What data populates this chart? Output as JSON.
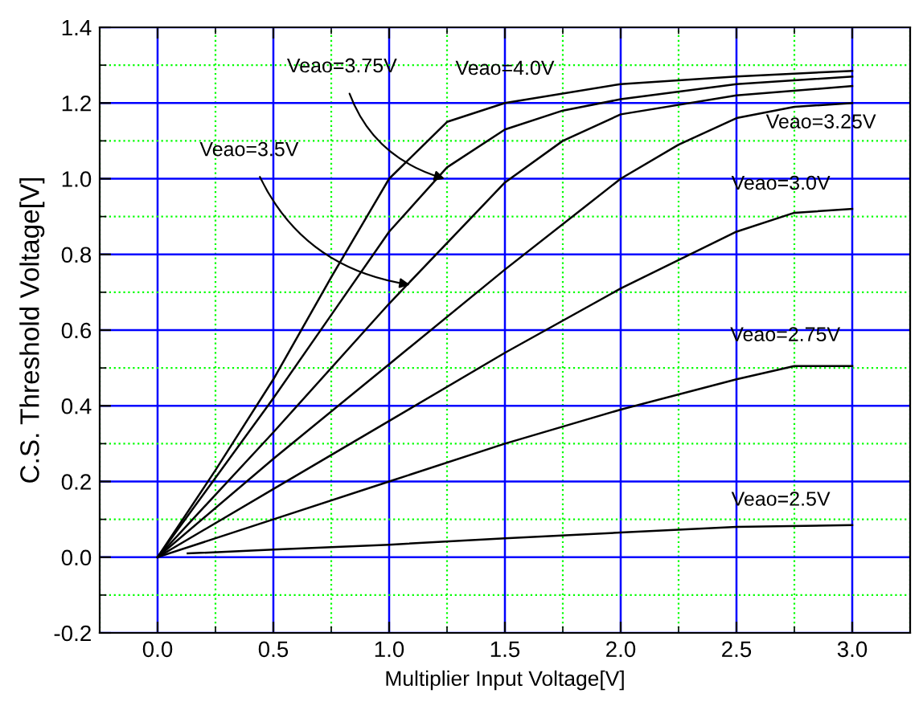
{
  "chart_data": {
    "type": "line",
    "xlabel": "Multiplier Input Voltage[V]",
    "ylabel": "C.S. Threshold Voltage[V]",
    "xlim": [
      -0.25,
      3.25
    ],
    "ylim": [
      -0.2,
      1.4
    ],
    "xticks": [
      {
        "value": -0.25,
        "label": null
      },
      {
        "value": 0,
        "label": "0.0"
      },
      {
        "value": 0.25,
        "label": null
      },
      0.5,
      {
        "value": 0.75,
        "label": null
      },
      {
        "value": 1,
        "label": "1.0"
      },
      {
        "value": 1.25,
        "label": null
      },
      1.5,
      {
        "value": 1.75,
        "label": null
      },
      {
        "value": 2,
        "label": "2.0"
      },
      {
        "value": 2.25,
        "label": null
      },
      2.5,
      {
        "value": 2.75,
        "label": null
      },
      {
        "value": 3,
        "label": "3.0"
      },
      {
        "value": 3.25,
        "label": null
      }
    ],
    "yticks": [
      -0.2,
      {
        "value": -0.1,
        "label": null
      },
      {
        "value": 0,
        "label": "0.0"
      },
      {
        "value": 0.1,
        "label": null
      },
      0.2,
      {
        "value": 0.3,
        "label": null
      },
      0.4,
      {
        "value": 0.5,
        "label": null
      },
      0.6,
      {
        "value": 0.7,
        "label": null
      },
      0.8,
      {
        "value": 0.9,
        "label": null
      },
      {
        "value": 1,
        "label": "1.0"
      },
      {
        "value": 1.1,
        "label": null
      },
      1.2,
      {
        "value": 1.3,
        "label": null
      },
      1.4
    ],
    "grid": true,
    "legend": false,
    "marker": "none",
    "line_style": "solid",
    "series": [
      {
        "color": "#000000",
        "x": [
          0,
          0.25,
          0.5,
          0.75,
          1.0,
          1.25,
          1.5,
          2.0,
          2.5,
          3.0
        ],
        "values": [
          0,
          0.23,
          0.47,
          0.74,
          1.0,
          1.15,
          1.2,
          1.25,
          1.27,
          1.285
        ]
      },
      {
        "color": "#000000",
        "x": [
          0,
          0.5,
          0.75,
          1.0,
          1.25,
          1.5,
          1.75,
          2.0,
          2.5,
          3.0
        ],
        "values": [
          0,
          0.42,
          0.64,
          0.86,
          1.03,
          1.13,
          1.18,
          1.21,
          1.25,
          1.27
        ]
      },
      {
        "color": "#000000",
        "x": [
          0,
          0.5,
          1.0,
          1.5,
          1.75,
          2.0,
          2.5,
          3.0
        ],
        "values": [
          0,
          0.33,
          0.67,
          0.99,
          1.1,
          1.17,
          1.22,
          1.245
        ]
      },
      {
        "color": "#000000",
        "x": [
          0,
          0.5,
          1.0,
          1.5,
          2.0,
          2.25,
          2.5,
          2.75,
          3.0
        ],
        "values": [
          0,
          0.26,
          0.51,
          0.76,
          1.0,
          1.09,
          1.16,
          1.19,
          1.2
        ]
      },
      {
        "color": "#000000",
        "x": [
          0,
          0.5,
          1.0,
          1.5,
          2.0,
          2.5,
          2.75,
          3.0
        ],
        "values": [
          0,
          0.18,
          0.36,
          0.54,
          0.71,
          0.86,
          0.91,
          0.92
        ]
      },
      {
        "color": "#000000",
        "x": [
          0,
          0.5,
          1.0,
          1.5,
          2.0,
          2.5,
          2.75,
          3.0
        ],
        "values": [
          0,
          0.1,
          0.2,
          0.3,
          0.39,
          0.47,
          0.505,
          0.505
        ]
      },
      {
        "color": "#000000",
        "x": [
          0.13,
          0.5,
          1.0,
          1.5,
          2.0,
          2.5,
          3.0
        ],
        "values": [
          0.01,
          0.02,
          0.033,
          0.05,
          0.065,
          0.08,
          0.085
        ]
      }
    ],
    "annotations": [
      {
        "text": "Veao=4.0V",
        "x": 1.5,
        "y": 1.2
      },
      {
        "text": "Veao=3.75V",
        "x": 1.24,
        "y": 1.0
      },
      {
        "text": "Veao=3.5V",
        "x": 1.09,
        "y": 0.72
      },
      {
        "text": "Veao=3.25V",
        "x": 3.0,
        "y": 1.2
      },
      {
        "text": "Veao=3.0V",
        "x": 3.0,
        "y": 0.92
      },
      {
        "text": "Veao=2.75V",
        "x": 3.0,
        "y": 0.505
      },
      {
        "text": "Veao=2.5V",
        "x": 3.0,
        "y": 0.085
      }
    ]
  }
}
